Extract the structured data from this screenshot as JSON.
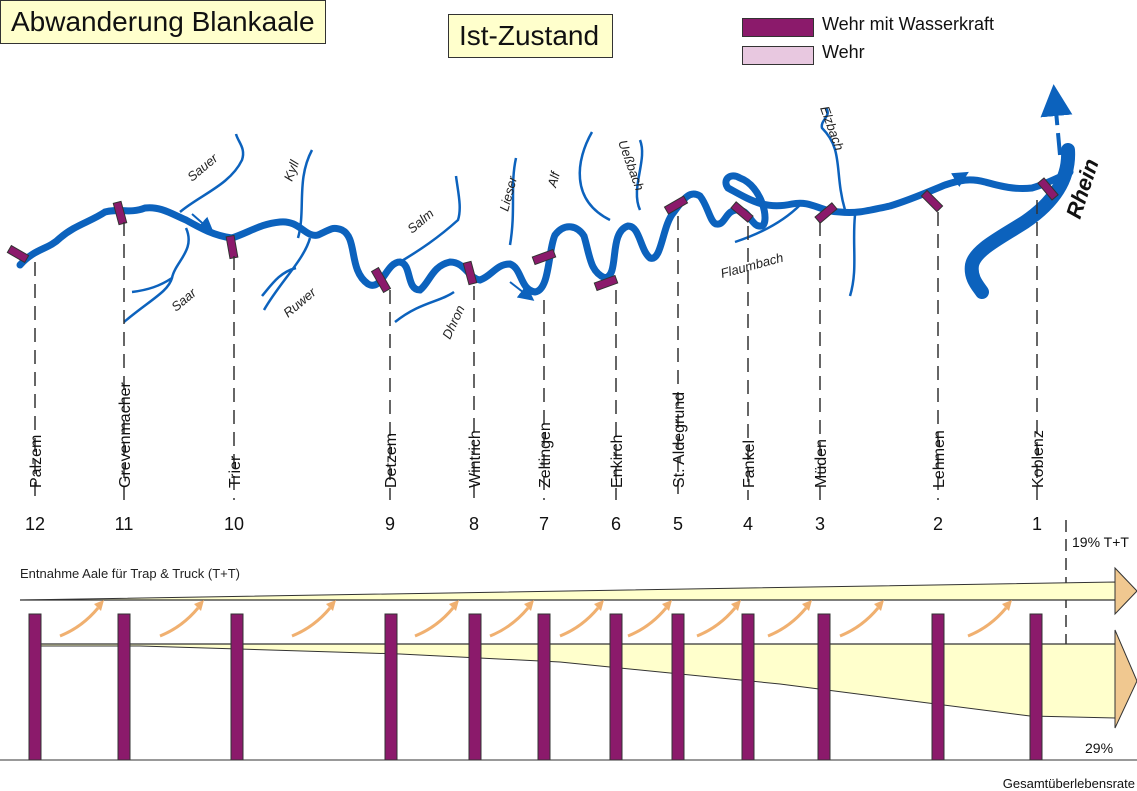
{
  "title": "Abwanderung Blankaale",
  "state_label": "Ist-Zustand",
  "legend": [
    {
      "label": "Wehr mit Wasserkraft",
      "color": "#8b1a6b"
    },
    {
      "label": "Wehr",
      "color": "#e8c8e0"
    }
  ],
  "colors": {
    "river": "#0c62bd",
    "weir": "#8b1a6b",
    "flow_fill": "#ffffcc",
    "arrow": "#f0b070"
  },
  "rhein_label": "Rhein",
  "tributaries": [
    "Sauer",
    "Saar",
    "Kyll",
    "Ruwer",
    "Salm",
    "Dhron",
    "Lieser",
    "Alf",
    "Ueßbach",
    "Flaumbach",
    "Elzbach"
  ],
  "stations": [
    {
      "num": "12",
      "name": "Palzem"
    },
    {
      "num": "11",
      "name": "Grevenmacher"
    },
    {
      "num": "10",
      "name": "Trier"
    },
    {
      "num": "9",
      "name": "Detzem"
    },
    {
      "num": "8",
      "name": "Wintrich"
    },
    {
      "num": "7",
      "name": "Zeltingen"
    },
    {
      "num": "6",
      "name": "Enkirch"
    },
    {
      "num": "5",
      "name": "St. Aldegrund"
    },
    {
      "num": "4",
      "name": "Fankel"
    },
    {
      "num": "3",
      "name": "Müden"
    },
    {
      "num": "2",
      "name": "Lehmen"
    },
    {
      "num": "1",
      "name": "Koblenz"
    }
  ],
  "trap_truck_label": "Entnahme Aale für Trap & Truck (T+T)",
  "trap_truck_value": "19% T+T",
  "survival_value": "29%",
  "survival_label": "Gesamtüberlebensrate"
}
